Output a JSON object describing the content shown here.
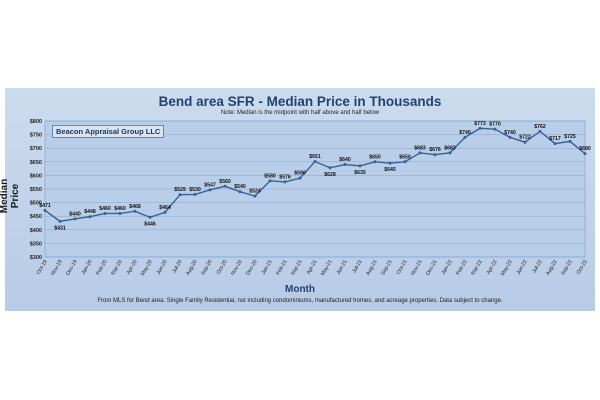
{
  "chart_data": {
    "type": "line",
    "title": "Bend area SFR - Median Price in Thousands",
    "subtitle": "Note: Median is the midpoint with half above and half below",
    "watermark": "Beacon Appraisal Group LLC",
    "xlabel": "Month",
    "ylabel": "Median Price",
    "source_note": "From MLS for Bend area.  Single Family Residential, not including condominiums, manufactured homes, and acreage properties.  Data subject to change.",
    "ylim": [
      300,
      800
    ],
    "yticks": [
      "$300",
      "$350",
      "$400",
      "$450",
      "$500",
      "$550",
      "$600",
      "$650",
      "$700",
      "$750",
      "$800"
    ],
    "grid": true,
    "series_color": "#3b5f94",
    "categories": [
      "Oct-19",
      "Nov-19",
      "Dec-19",
      "Jan-20",
      "Feb-20",
      "Mar-20",
      "Apr-20",
      "May-20",
      "Jun-20",
      "Jul-20",
      "Aug-20",
      "Sep-20",
      "Oct-20",
      "Nov-20",
      "Dec-20",
      "Jan-21",
      "Feb-21",
      "Mar-21",
      "Apr-21",
      "May-21",
      "Jun-21",
      "Jul-21",
      "Aug-21",
      "Sep-21",
      "Oct-21",
      "Nov-21",
      "Dec-21",
      "Jan-22",
      "Feb-22",
      "Mar-22",
      "Apr-22",
      "May-22",
      "Jun-22",
      "Jul-22",
      "Aug-22",
      "Sep-22",
      "Oct-22"
    ],
    "x_tick_labels": [
      "Oct-19",
      "Nov-19",
      "Dec-19",
      "Jan-20",
      "Feb-20",
      "Mar-20",
      "Apr-20",
      "May-20",
      "Jun-20",
      "Jul-20",
      "Aug-20",
      "Sep-20",
      "Oct-20",
      "Nov-20",
      "Dec-20",
      "Jan-21",
      "Feb-21",
      "Mar-21",
      "Apr-21",
      "May-21",
      "Jun-21",
      "Jul-21",
      "Aug-21",
      "Sep-21",
      "Oct-21",
      "Nov-21",
      "Dec-21",
      "Jan-22",
      "Feb-22",
      "Mar-22",
      "Apr-22",
      "May-22",
      "Jun-22",
      "Jul-22",
      "Aug-22",
      "Sep-22",
      "Oct-22"
    ],
    "values": [
      471,
      431,
      440,
      448,
      460,
      460,
      468,
      446,
      464,
      529,
      530,
      547,
      560,
      540,
      524,
      580,
      576,
      590,
      651,
      628,
      640,
      635,
      650,
      645,
      650,
      683,
      676,
      683,
      740,
      773,
      770,
      740,
      722,
      762,
      717,
      725,
      680
    ],
    "data_labels": [
      "$471",
      "$431",
      "$440",
      "$448",
      "$460",
      "$460",
      "$468",
      "$446",
      "$464",
      "$529",
      "$530",
      "$547",
      "$560",
      "$540",
      "$524",
      "$580",
      "$576",
      "$590",
      "$651",
      "$628",
      "$640",
      "$635",
      "$650",
      "$645",
      "$650",
      "$683",
      "$676",
      "$683",
      "$740",
      "$773",
      "$770",
      "$740",
      "$722",
      "$762",
      "$717",
      "$725",
      "$680"
    ],
    "label_above": [
      true,
      false,
      true,
      true,
      true,
      true,
      true,
      false,
      true,
      true,
      true,
      true,
      true,
      true,
      true,
      true,
      true,
      true,
      true,
      false,
      true,
      false,
      true,
      false,
      true,
      true,
      true,
      true,
      true,
      true,
      true,
      true,
      true,
      true,
      true,
      true,
      true
    ]
  }
}
